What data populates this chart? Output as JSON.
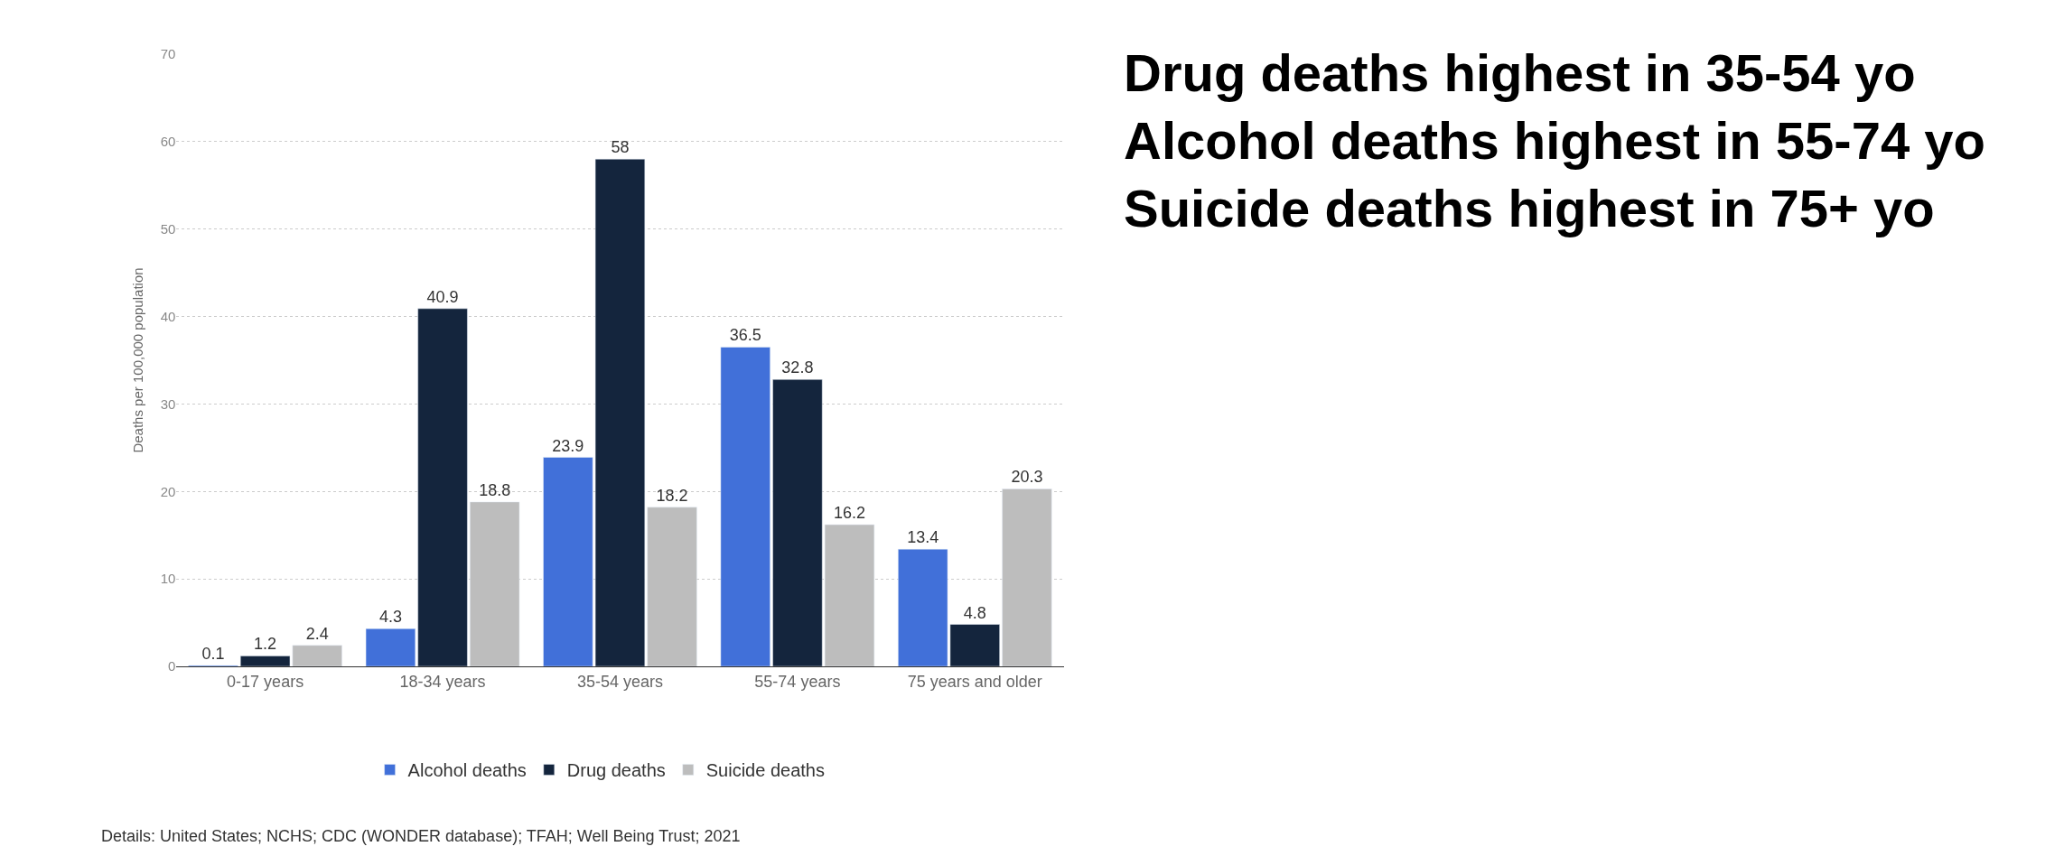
{
  "chart_data": {
    "type": "bar",
    "ylabel": "Deaths per 100,000 population",
    "categories": [
      "0-17 years",
      "18-34 years",
      "35-54 years",
      "55-74 years",
      "75 years and older"
    ],
    "series": [
      {
        "name": "Alcohol deaths",
        "color": "#4170d9",
        "values": [
          0.1,
          4.3,
          23.9,
          36.5,
          13.4
        ]
      },
      {
        "name": "Drug deaths",
        "color": "#14253d",
        "values": [
          1.2,
          40.9,
          58,
          32.8,
          4.8
        ]
      },
      {
        "name": "Suicide deaths",
        "color": "#bdbdbd",
        "values": [
          2.4,
          18.8,
          18.2,
          16.2,
          20.3
        ]
      }
    ],
    "ylim": [
      0,
      70
    ],
    "yticks": [
      0,
      10,
      20,
      30,
      40,
      50,
      60,
      70
    ],
    "grid": "y",
    "legend": "bottom",
    "data_labels": true,
    "annotations": [
      "Drug deaths highest in 35-54 yo",
      "Alcohol deaths highest in 55-74 yo",
      "Suicide deaths highest in 75+ yo",
      "Details: United States; NCHS; CDC (WONDER database); TFAH; Well Being Trust; 2021"
    ]
  }
}
